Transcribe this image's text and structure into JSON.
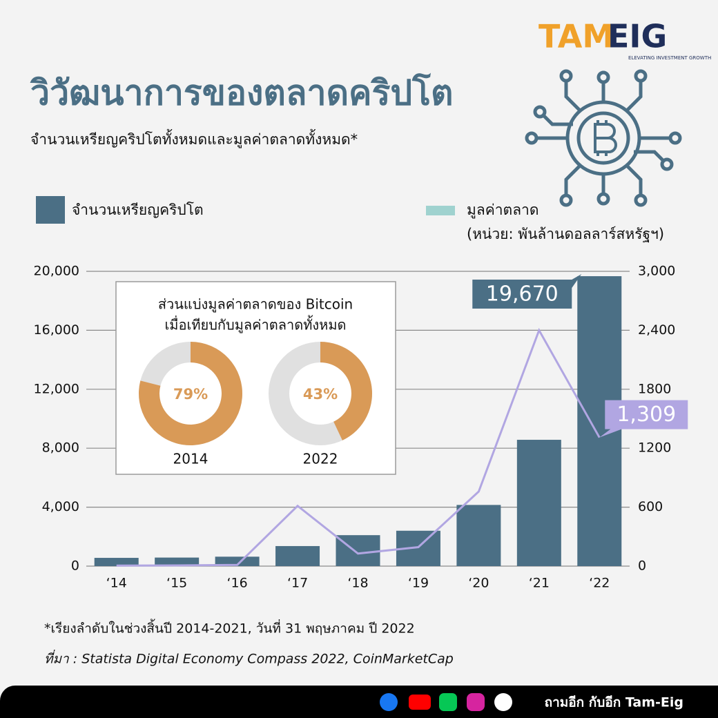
{
  "logo": {
    "left": "TAM",
    "right": "EIG",
    "tagline": "ELEVATING INVESTMENT GROWTH"
  },
  "title": "วิวัฒนาการของตลาดคริปโต",
  "subtitle": "จำนวนเหรียญคริปโตทั้งหมดและมูลค่าตลาดทั้งหมด*",
  "inset_title": [
    "ส่วนแบ่งมูลค่าตลาดของ Bitcoin",
    "เมื่อเทียบกับมูลค่าตลาดทั้งหมด"
  ],
  "chart_data": [
    {
      "type": "bar",
      "categories": [
        "‘14",
        "‘15",
        "‘16",
        "‘17",
        "‘18",
        "‘19",
        "‘20",
        "‘21",
        "‘22"
      ],
      "series": [
        {
          "name": "จำนวนเหรียญคริปโต",
          "type": "bar",
          "color": "#4b6f85",
          "values": [
            560,
            580,
            640,
            1360,
            2100,
            2400,
            4150,
            8570,
            19670
          ],
          "value_labels": [
            null,
            null,
            null,
            null,
            null,
            null,
            null,
            null,
            "19,670"
          ]
        },
        {
          "name": "มูลค่าตลาด",
          "type": "line",
          "axis": "y2",
          "color": "#b1a6e2",
          "legend_color": "#9fd2cf",
          "values": [
            5,
            7,
            12,
            613,
            128,
            193,
            759,
            2400,
            1309
          ],
          "value_labels": [
            null,
            null,
            null,
            null,
            null,
            null,
            null,
            null,
            "1,309"
          ]
        }
      ],
      "y2label": "(หน่วย: พันล้านดอลลาร์สหรัฐฯ)",
      "ylim": [
        0,
        20000
      ],
      "yticks": [
        0,
        {
          "value": 4000,
          "label": "4,000"
        },
        {
          "value": 8000,
          "label": "8,000"
        },
        {
          "value": 12000,
          "label": "12,000"
        },
        {
          "value": 16000,
          "label": "16,000"
        },
        {
          "value": 20000,
          "label": "20,000"
        }
      ],
      "y2lim": [
        0,
        3000
      ],
      "y2ticks": [
        0,
        600,
        1200,
        1800,
        {
          "value": 2400,
          "label": "2,400"
        },
        {
          "value": 3000,
          "label": "3,000"
        }
      ],
      "grid": true
    },
    {
      "type": "pie",
      "title": "2014",
      "values": [
        79
      ],
      "value_labels": [
        "79%"
      ],
      "color": "#d99a57",
      "rest_color": "#e0e0e0"
    },
    {
      "type": "pie",
      "title": "2022",
      "values": [
        43
      ],
      "value_labels": [
        "43%"
      ],
      "color": "#d99a57",
      "rest_color": "#e0e0e0"
    }
  ],
  "footnote": "*เรียงลำดับในช่วงสิ้นปี 2014-2021, วันที่ 31 พฤษภาคม ปี 2022",
  "source": "ที่มา : Statista Digital Economy Compass 2022, CoinMarketCap",
  "footer": "ถามอีก กับอีก Tam-Eig"
}
